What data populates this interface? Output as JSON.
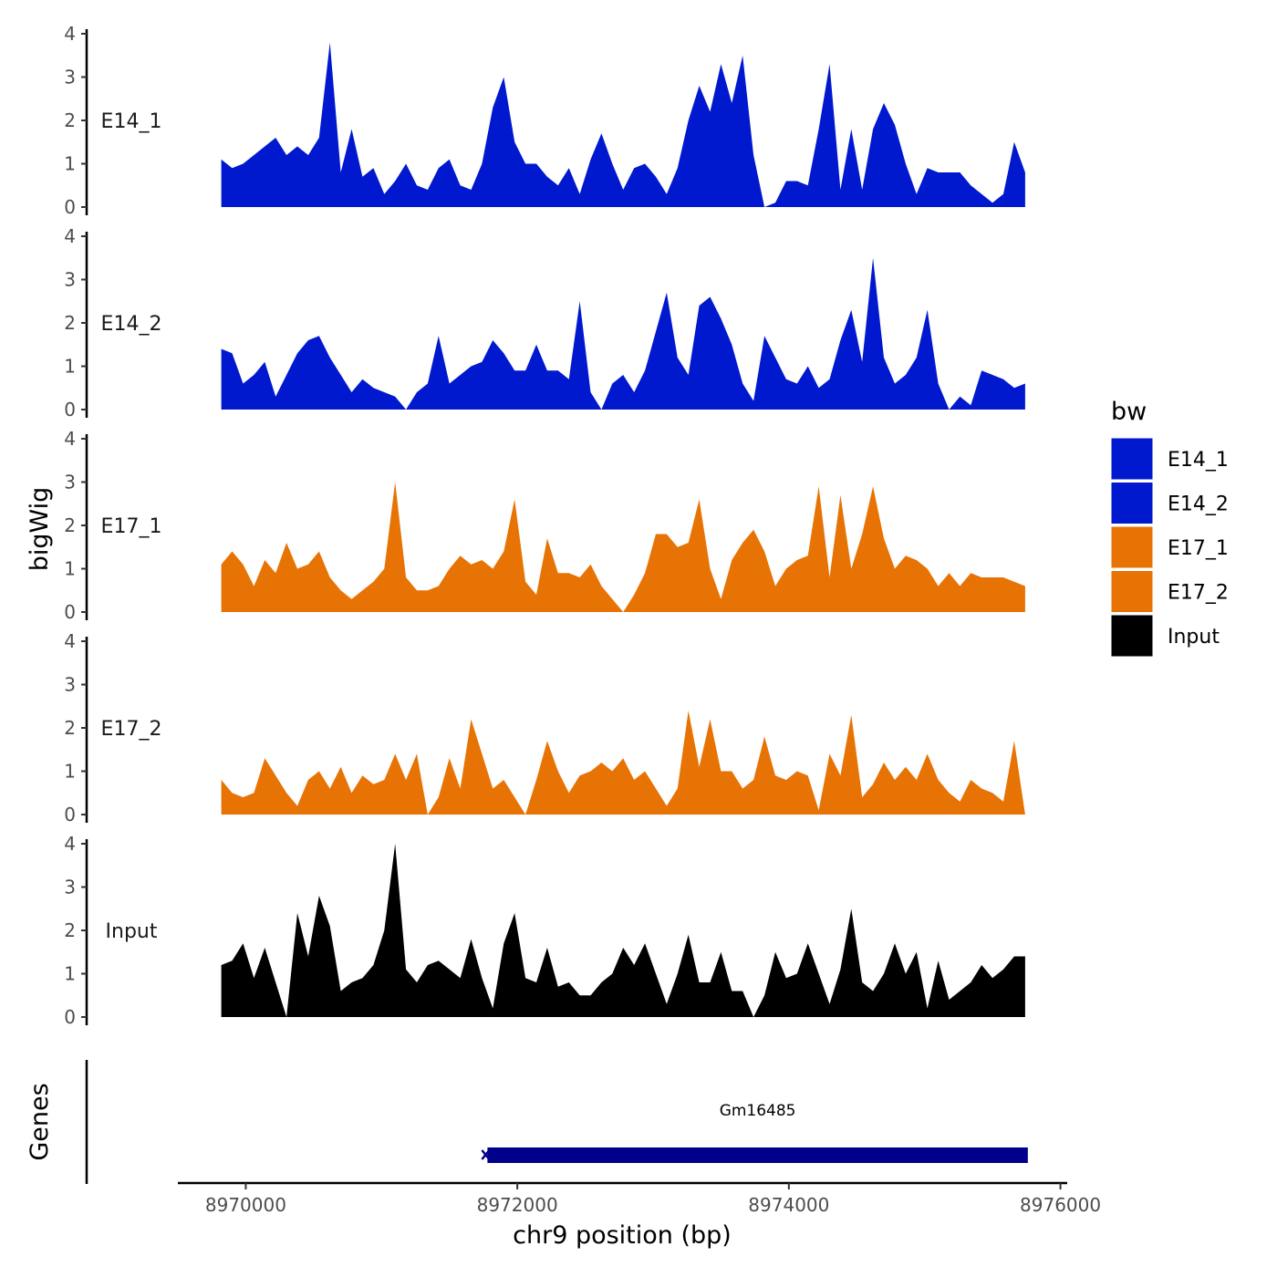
{
  "chart_data": {
    "type": "area",
    "title": "",
    "ylabel": "bigWig",
    "xlabel": "chr9 position (bp)",
    "xlim": [
      8969500,
      8976050
    ],
    "ylim": [
      0,
      4
    ],
    "x_ticks": [
      8970000,
      8972000,
      8974000,
      8976000
    ],
    "x_tick_labels": [
      "8970000",
      "8972000",
      "8974000",
      "8976000"
    ],
    "y_ticks": [
      0,
      1,
      2,
      3,
      4
    ],
    "y_tick_labels": [
      "0",
      "1",
      "2",
      "3",
      "4"
    ],
    "grid": false,
    "legend": {
      "title": "bw",
      "position": "right",
      "items": [
        {
          "name": "E14_1",
          "color": "#0019cf"
        },
        {
          "name": "E14_2",
          "color": "#0019cf"
        },
        {
          "name": "E17_1",
          "color": "#e87305"
        },
        {
          "name": "E17_2",
          "color": "#e87305"
        },
        {
          "name": "Input",
          "color": "#000000"
        }
      ]
    },
    "x": [
      8969820,
      8969900,
      8969980,
      8970060,
      8970140,
      8970220,
      8970300,
      8970380,
      8970460,
      8970540,
      8970620,
      8970700,
      8970780,
      8970860,
      8970940,
      8971020,
      8971100,
      8971180,
      8971260,
      8971340,
      8971420,
      8971500,
      8971580,
      8971660,
      8971740,
      8971820,
      8971900,
      8971980,
      8972060,
      8972140,
      8972220,
      8972300,
      8972380,
      8972460,
      8972540,
      8972620,
      8972700,
      8972780,
      8972860,
      8972940,
      8973020,
      8973100,
      8973180,
      8973260,
      8973340,
      8973420,
      8973500,
      8973580,
      8973660,
      8973740,
      8973820,
      8973900,
      8973980,
      8974060,
      8974140,
      8974220,
      8974300,
      8974380,
      8974460,
      8974540,
      8974620,
      8974700,
      8974780,
      8974860,
      8974940,
      8975020,
      8975100,
      8975180,
      8975260,
      8975340,
      8975420,
      8975500,
      8975580,
      8975660,
      8975740
    ],
    "series": [
      {
        "name": "E14_1",
        "strip_label": "E14_1",
        "color": "#0019cf",
        "values": [
          1.1,
          0.9,
          1.0,
          1.2,
          1.4,
          1.6,
          1.2,
          1.4,
          1.2,
          1.6,
          3.8,
          0.8,
          1.8,
          0.7,
          0.9,
          0.3,
          0.6,
          1.0,
          0.5,
          0.4,
          0.9,
          1.1,
          0.5,
          0.4,
          1.0,
          2.3,
          3.0,
          1.5,
          1.0,
          1.0,
          0.7,
          0.5,
          0.9,
          0.3,
          1.1,
          1.7,
          1.0,
          0.4,
          0.9,
          1.0,
          0.7,
          0.3,
          0.9,
          2.0,
          2.8,
          2.2,
          3.3,
          2.4,
          3.5,
          1.2,
          0.0,
          0.1,
          0.6,
          0.6,
          0.5,
          1.8,
          3.3,
          0.4,
          1.8,
          0.4,
          1.8,
          2.4,
          1.9,
          1.0,
          0.3,
          0.9,
          0.8,
          0.8,
          0.8,
          0.5,
          0.3,
          0.1,
          0.3,
          1.5,
          0.8
        ]
      },
      {
        "name": "E14_2",
        "strip_label": "E14_2",
        "color": "#0019cf",
        "values": [
          1.4,
          1.3,
          0.6,
          0.8,
          1.1,
          0.3,
          0.8,
          1.3,
          1.6,
          1.7,
          1.2,
          0.8,
          0.4,
          0.7,
          0.5,
          0.4,
          0.3,
          0.0,
          0.4,
          0.6,
          1.7,
          0.6,
          0.8,
          1.0,
          1.1,
          1.6,
          1.3,
          0.9,
          0.9,
          1.5,
          0.9,
          0.9,
          0.7,
          2.5,
          0.4,
          0.0,
          0.6,
          0.8,
          0.4,
          0.9,
          1.8,
          2.7,
          1.2,
          0.8,
          2.4,
          2.6,
          2.1,
          1.5,
          0.6,
          0.2,
          1.7,
          1.2,
          0.7,
          0.6,
          1.0,
          0.5,
          0.7,
          1.6,
          2.3,
          1.1,
          3.5,
          1.2,
          0.6,
          0.8,
          1.2,
          2.3,
          0.6,
          0.0,
          0.3,
          0.1,
          0.9,
          0.8,
          0.7,
          0.5,
          0.6
        ]
      },
      {
        "name": "E17_1",
        "strip_label": "E17_1",
        "color": "#e87305",
        "values": [
          1.1,
          1.4,
          1.1,
          0.6,
          1.2,
          0.9,
          1.6,
          1.0,
          1.1,
          1.4,
          0.8,
          0.5,
          0.3,
          0.5,
          0.7,
          1.0,
          3.0,
          0.8,
          0.5,
          0.5,
          0.6,
          1.0,
          1.3,
          1.1,
          1.2,
          1.0,
          1.4,
          2.6,
          0.7,
          0.4,
          1.7,
          0.9,
          0.9,
          0.8,
          1.1,
          0.6,
          0.3,
          0.0,
          0.4,
          0.9,
          1.8,
          1.8,
          1.5,
          1.6,
          2.6,
          1.0,
          0.3,
          1.2,
          1.6,
          1.9,
          1.4,
          0.6,
          1.0,
          1.2,
          1.3,
          2.9,
          0.8,
          2.7,
          1.0,
          1.8,
          2.9,
          1.7,
          1.0,
          1.3,
          1.2,
          1.0,
          0.6,
          0.9,
          0.6,
          0.9,
          0.8,
          0.8,
          0.8,
          0.7,
          0.6
        ]
      },
      {
        "name": "E17_2",
        "strip_label": "E17_2",
        "color": "#e87305",
        "values": [
          0.8,
          0.5,
          0.4,
          0.5,
          1.3,
          0.9,
          0.5,
          0.2,
          0.8,
          1.0,
          0.6,
          1.1,
          0.5,
          0.9,
          0.7,
          0.8,
          1.4,
          0.8,
          1.4,
          0.0,
          0.4,
          1.3,
          0.6,
          2.2,
          1.4,
          0.6,
          0.8,
          0.4,
          0.0,
          0.8,
          1.7,
          1.0,
          0.5,
          0.9,
          1.0,
          1.2,
          1.0,
          1.3,
          0.8,
          1.0,
          0.6,
          0.2,
          0.6,
          2.4,
          1.1,
          2.2,
          1.0,
          1.0,
          0.6,
          0.8,
          1.8,
          0.9,
          0.8,
          1.0,
          0.9,
          0.1,
          1.4,
          0.9,
          2.3,
          0.4,
          0.7,
          1.2,
          0.8,
          1.1,
          0.8,
          1.4,
          0.8,
          0.5,
          0.3,
          0.8,
          0.6,
          0.5,
          0.3,
          1.7,
          0.0
        ]
      },
      {
        "name": "Input",
        "strip_label": "Input",
        "color": "#000000",
        "values": [
          1.2,
          1.3,
          1.7,
          0.9,
          1.6,
          0.8,
          0.0,
          2.4,
          1.4,
          2.8,
          2.1,
          0.6,
          0.8,
          0.9,
          1.2,
          2.0,
          4.0,
          1.1,
          0.8,
          1.2,
          1.3,
          1.1,
          0.9,
          1.8,
          0.9,
          0.2,
          1.7,
          2.4,
          0.9,
          0.8,
          1.6,
          0.7,
          0.8,
          0.5,
          0.5,
          0.8,
          1.0,
          1.6,
          1.2,
          1.7,
          1.0,
          0.3,
          1.0,
          1.9,
          0.8,
          0.8,
          1.5,
          0.6,
          0.6,
          0.0,
          0.5,
          1.5,
          0.9,
          1.0,
          1.7,
          1.0,
          0.3,
          1.1,
          2.5,
          0.8,
          0.6,
          1.0,
          1.7,
          1.0,
          1.5,
          0.2,
          1.3,
          0.4,
          0.6,
          0.8,
          1.2,
          0.9,
          1.1,
          1.4,
          1.4
        ]
      }
    ],
    "genes_track": {
      "ylabel": "Genes",
      "genes": [
        {
          "name": "Gm16485",
          "start": 8971780,
          "end": 8975760,
          "strand": "-",
          "color": "#00008b"
        }
      ]
    }
  }
}
